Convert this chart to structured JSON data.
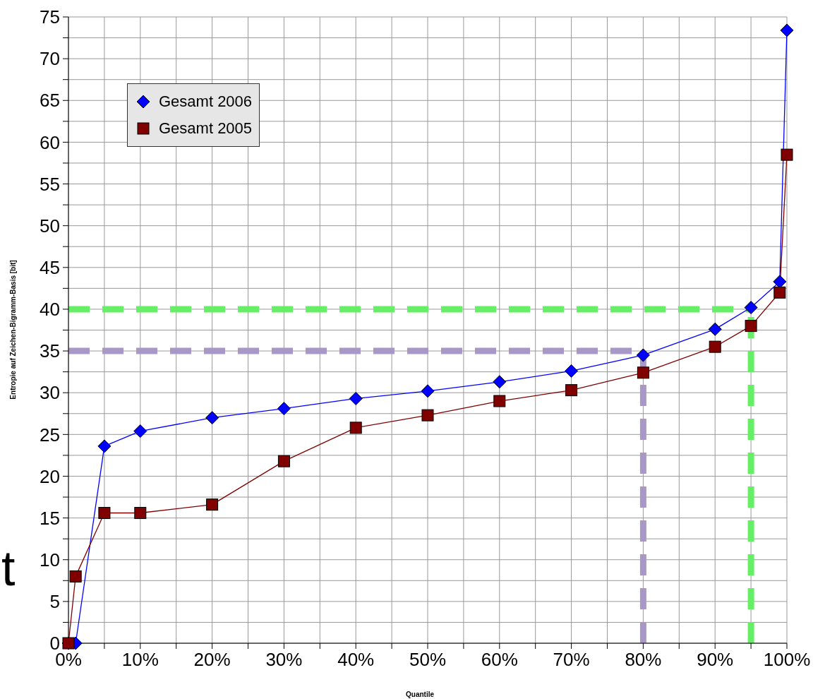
{
  "chart_data": {
    "type": "line",
    "xlabel": "Quantile",
    "ylabel": "Entropie auf Zeichen-Bigramm-Basis [bit]",
    "annotations": [
      "t"
    ],
    "series": [
      {
        "name": "Gesamt 2006",
        "color": "#0000ff",
        "marker": "diamond",
        "x": [
          0,
          1,
          5,
          10,
          20,
          30,
          40,
          50,
          60,
          70,
          80,
          90,
          95,
          99,
          100
        ],
        "values": [
          0,
          0,
          23.6,
          25.4,
          27.0,
          28.1,
          29.3,
          30.2,
          31.3,
          32.6,
          34.5,
          37.6,
          40.2,
          43.3,
          73.4
        ]
      },
      {
        "name": "Gesamt 2005",
        "color": "#800000",
        "marker": "square",
        "x": [
          0,
          1,
          5,
          10,
          20,
          30,
          40,
          50,
          60,
          70,
          80,
          90,
          95,
          99,
          100
        ],
        "values": [
          0,
          8.0,
          15.6,
          15.6,
          16.6,
          21.8,
          25.8,
          27.3,
          29.0,
          30.3,
          32.4,
          35.5,
          38.0,
          42.0,
          58.5
        ]
      }
    ],
    "xlim": [
      0,
      100
    ],
    "xticks": [
      {
        "value": 0,
        "label": "0%"
      },
      {
        "value": 5,
        "label": null
      },
      {
        "value": 10,
        "label": "10%"
      },
      {
        "value": 15,
        "label": null
      },
      {
        "value": 20,
        "label": "20%"
      },
      {
        "value": 25,
        "label": null
      },
      {
        "value": 30,
        "label": "30%"
      },
      {
        "value": 35,
        "label": null
      },
      {
        "value": 40,
        "label": "40%"
      },
      {
        "value": 45,
        "label": null
      },
      {
        "value": 50,
        "label": "50%"
      },
      {
        "value": 55,
        "label": null
      },
      {
        "value": 60,
        "label": "60%"
      },
      {
        "value": 65,
        "label": null
      },
      {
        "value": 70,
        "label": "70%"
      },
      {
        "value": 75,
        "label": null
      },
      {
        "value": 80,
        "label": "80%"
      },
      {
        "value": 85,
        "label": null
      },
      {
        "value": 90,
        "label": "90%"
      },
      {
        "value": 95,
        "label": null
      },
      {
        "value": 100,
        "label": "100%"
      }
    ],
    "ylim": [
      0,
      75
    ],
    "yticks": [
      0,
      {
        "value": 2.5,
        "label": null
      },
      5,
      {
        "value": 7.5,
        "label": null
      },
      10,
      {
        "value": 12.5,
        "label": null
      },
      15,
      {
        "value": 17.5,
        "label": null
      },
      20,
      {
        "value": 22.5,
        "label": null
      },
      25,
      {
        "value": 27.5,
        "label": null
      },
      30,
      {
        "value": 32.5,
        "label": null
      },
      35,
      {
        "value": 37.5,
        "label": null
      },
      40,
      {
        "value": 42.5,
        "label": null
      },
      45,
      {
        "value": 47.5,
        "label": null
      },
      50,
      {
        "value": 52.5,
        "label": null
      },
      55,
      {
        "value": 57.5,
        "label": null
      },
      60,
      {
        "value": 62.5,
        "label": null
      },
      65,
      {
        "value": 67.5,
        "label": null
      },
      70,
      {
        "value": 72.5,
        "label": null
      },
      75
    ],
    "ref_lines": [
      {
        "axis": "y",
        "value": 40,
        "color": "#66ee66",
        "line_style": "dashed"
      },
      {
        "axis": "x",
        "value": 95,
        "color": "#66ee66",
        "line_style": "dashed"
      },
      {
        "axis": "y",
        "value": 35,
        "color": "#a898c8",
        "line_style": "dashed"
      },
      {
        "axis": "x",
        "value": 80,
        "color": "#a898c8",
        "line_style": "dashed"
      }
    ],
    "grid": true,
    "legend": "top left",
    "line_style": "solid"
  }
}
